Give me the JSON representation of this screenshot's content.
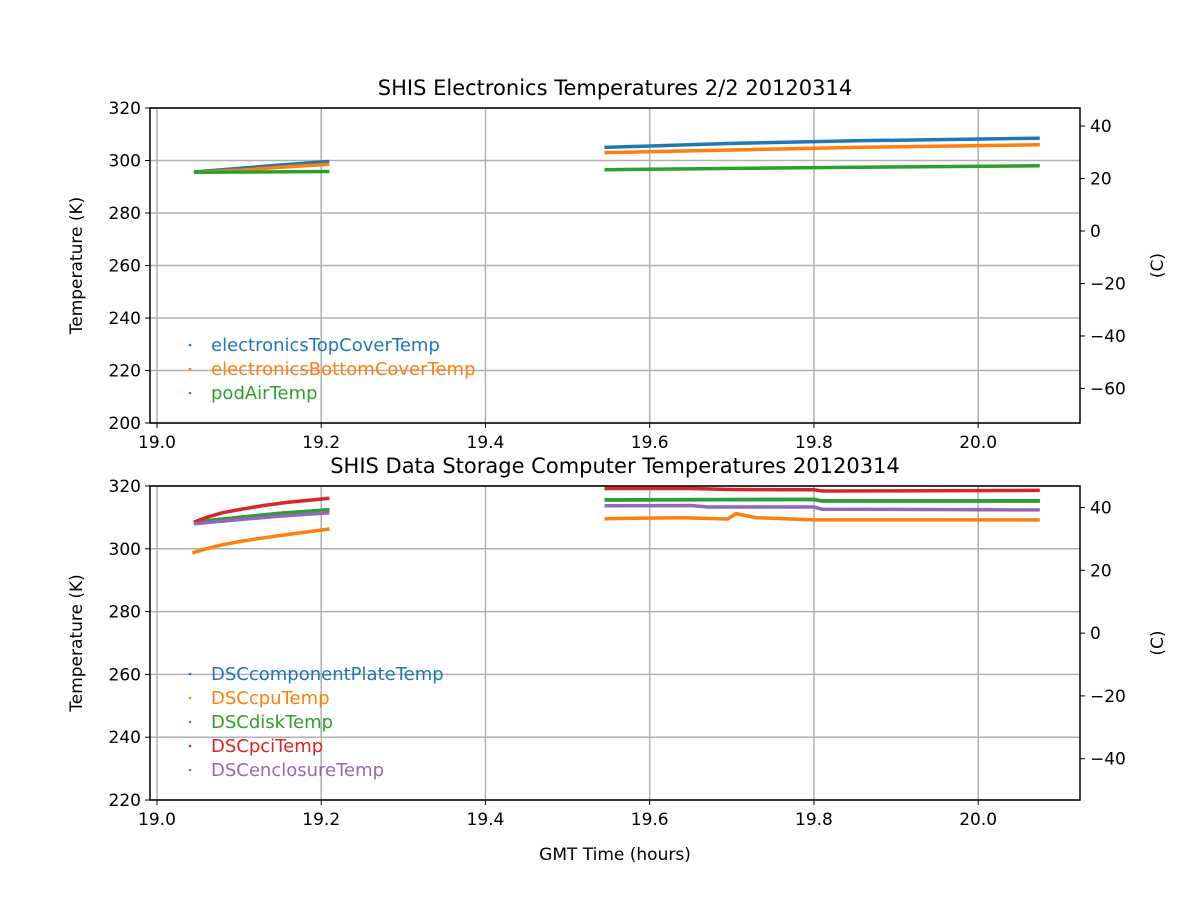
{
  "chart_data": [
    {
      "type": "line",
      "title": "SHIS Electronics Temperatures 2/2 20120314",
      "xlabel": "",
      "ylabel": "Temperature (K)",
      "ylabel_right": "(C)",
      "xlim": [
        18.9915,
        20.124
      ],
      "ylim": [
        200,
        320
      ],
      "xticks": [
        "19.0",
        "19.2",
        "19.4",
        "19.6",
        "19.8",
        "20.0"
      ],
      "yticks": [
        "200",
        "220",
        "240",
        "260",
        "280",
        "300",
        "320"
      ],
      "yticks_right": [
        "40",
        "20",
        "0",
        "−20",
        "−40",
        "−60"
      ],
      "grid": true,
      "legend_position": "lower-left",
      "series": [
        {
          "name": "electronicsTopCoverTemp",
          "color": "#1f77b4",
          "segments": [
            [
              [
                19.045,
                295.6
              ],
              [
                19.1,
                297.0
              ],
              [
                19.15,
                298.3
              ],
              [
                19.21,
                299.6
              ]
            ],
            [
              [
                19.545,
                305.0
              ],
              [
                19.7,
                306.5
              ],
              [
                19.85,
                307.5
              ],
              [
                20.075,
                308.5
              ]
            ]
          ]
        },
        {
          "name": "electronicsBottomCoverTemp",
          "color": "#ff7f0e",
          "segments": [
            [
              [
                19.045,
                295.5
              ],
              [
                19.1,
                296.3
              ],
              [
                19.15,
                297.4
              ],
              [
                19.21,
                298.6
              ]
            ],
            [
              [
                19.545,
                303.0
              ],
              [
                19.7,
                304.0
              ],
              [
                19.85,
                305.0
              ],
              [
                20.075,
                306.0
              ]
            ]
          ]
        },
        {
          "name": "podAirTemp",
          "color": "#2ca02c",
          "segments": [
            [
              [
                19.045,
                295.5
              ],
              [
                19.21,
                295.8
              ]
            ],
            [
              [
                19.545,
                296.5
              ],
              [
                19.8,
                297.3
              ],
              [
                20.075,
                298.0
              ]
            ]
          ]
        }
      ]
    },
    {
      "type": "line",
      "title": "SHIS Data Storage Computer Temperatures 20120314",
      "xlabel": "GMT Time (hours)",
      "ylabel": "Temperature (K)",
      "ylabel_right": "(C)",
      "xlim": [
        18.9915,
        20.124
      ],
      "ylim": [
        220,
        320
      ],
      "xticks": [
        "19.0",
        "19.2",
        "19.4",
        "19.6",
        "19.8",
        "20.0"
      ],
      "yticks": [
        "220",
        "240",
        "260",
        "280",
        "300",
        "320"
      ],
      "yticks_right": [
        "40",
        "20",
        "0",
        "−20",
        "−40"
      ],
      "grid": true,
      "legend_position": "lower-left",
      "series": [
        {
          "name": "DSCcomponentPlateTemp",
          "color": "#1f77b4",
          "segments": [
            [
              [
                19.045,
                308.5
              ],
              [
                19.1,
                310.0
              ],
              [
                19.15,
                311.3
              ],
              [
                19.21,
                312.3
              ]
            ],
            [
              [
                19.545,
                315.5
              ],
              [
                19.8,
                315.7
              ],
              [
                19.81,
                315.2
              ],
              [
                20.075,
                315.2
              ]
            ]
          ]
        },
        {
          "name": "DSCcpuTemp",
          "color": "#ff7f0e",
          "segments": [
            [
              [
                19.043,
                298.7
              ],
              [
                19.06,
                300.0
              ],
              [
                19.08,
                301.3
              ],
              [
                19.1,
                302.3
              ],
              [
                19.13,
                303.5
              ],
              [
                19.16,
                304.6
              ],
              [
                19.21,
                306.3
              ]
            ],
            [
              [
                19.545,
                309.6
              ],
              [
                19.64,
                309.9
              ],
              [
                19.695,
                309.5
              ],
              [
                19.705,
                311.2
              ],
              [
                19.73,
                309.9
              ],
              [
                19.8,
                309.2
              ],
              [
                20.075,
                309.2
              ]
            ]
          ]
        },
        {
          "name": "DSCdiskTemp",
          "color": "#2ca02c",
          "segments": [
            [
              [
                19.045,
                308.5
              ],
              [
                19.1,
                310.0
              ],
              [
                19.15,
                311.3
              ],
              [
                19.21,
                312.5
              ]
            ],
            [
              [
                19.545,
                315.6
              ],
              [
                19.8,
                315.8
              ],
              [
                19.81,
                315.3
              ],
              [
                20.075,
                315.3
              ]
            ]
          ]
        },
        {
          "name": "DSCpciTemp",
          "color": "#d62728",
          "segments": [
            [
              [
                19.045,
                308.5
              ],
              [
                19.06,
                310.0
              ],
              [
                19.08,
                311.5
              ],
              [
                19.1,
                312.5
              ],
              [
                19.13,
                313.8
              ],
              [
                19.16,
                314.8
              ],
              [
                19.21,
                316.1
              ]
            ],
            [
              [
                19.545,
                319.2
              ],
              [
                19.65,
                319.2
              ],
              [
                19.7,
                318.9
              ],
              [
                19.8,
                318.8
              ],
              [
                19.81,
                318.4
              ],
              [
                20.075,
                318.6
              ]
            ]
          ]
        },
        {
          "name": "DSCenclosureTemp",
          "color": "#9467bd",
          "segments": [
            [
              [
                19.045,
                308.0
              ],
              [
                19.1,
                309.3
              ],
              [
                19.15,
                310.4
              ],
              [
                19.21,
                311.5
              ]
            ],
            [
              [
                19.545,
                313.7
              ],
              [
                19.65,
                313.8
              ],
              [
                19.67,
                313.3
              ],
              [
                19.8,
                313.3
              ],
              [
                19.81,
                312.6
              ],
              [
                20.075,
                312.4
              ]
            ]
          ]
        }
      ]
    }
  ]
}
